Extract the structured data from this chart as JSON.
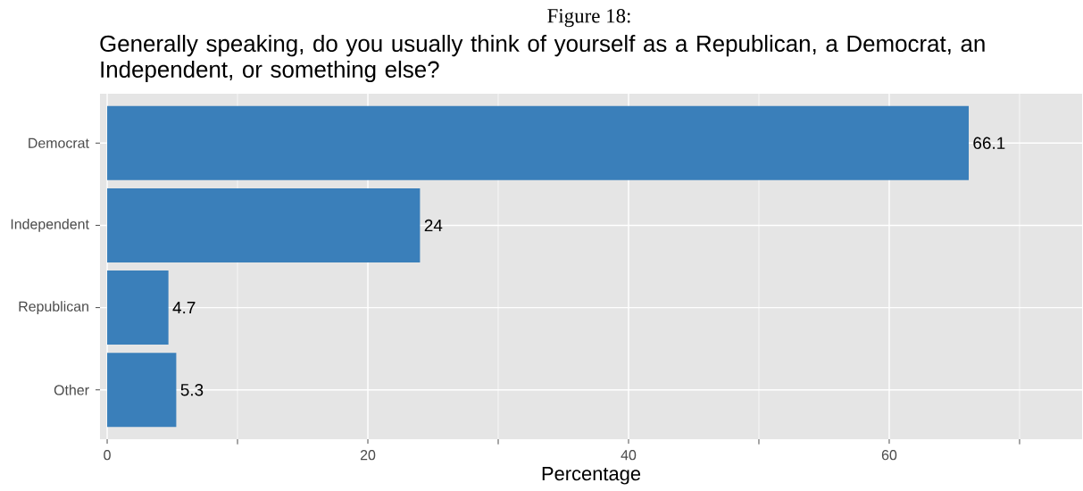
{
  "chart_data": {
    "type": "bar",
    "orientation": "horizontal",
    "title": "Figure 18:",
    "subtitle": "Generally speaking, do you usually think of yourself as a Republican, a Democrat, an Independent, or something else?",
    "xlabel": "Percentage",
    "categories": [
      "Democrat",
      "Independent",
      "Republican",
      "Other"
    ],
    "values": [
      66.1,
      24,
      4.7,
      5.3
    ],
    "color": "#3a7fba",
    "xlim": [
      -0.55,
      74.8
    ],
    "xticks": [
      0,
      20,
      40,
      60
    ],
    "grid": true,
    "data_labels": true
  }
}
